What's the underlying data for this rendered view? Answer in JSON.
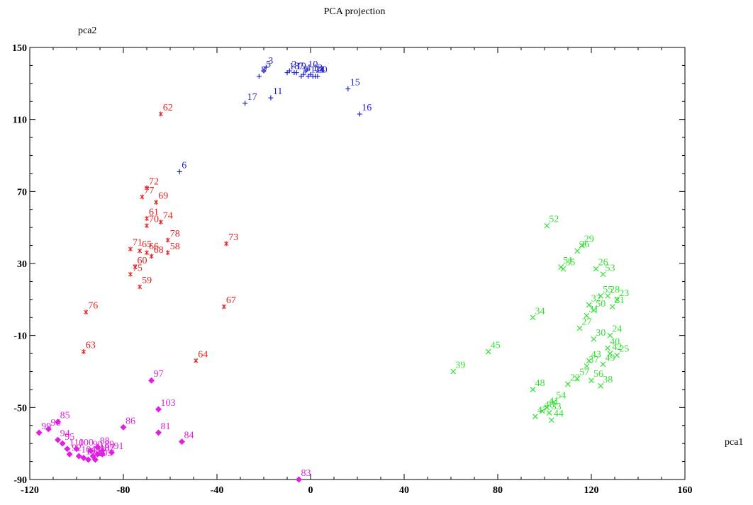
{
  "chart_data": {
    "type": "scatter",
    "title": "PCA projection",
    "xlabel": "pca1",
    "ylabel": "pca2",
    "xlim": [
      -120,
      160
    ],
    "ylim": [
      -90,
      150
    ],
    "xticks": [
      -120,
      -80,
      -40,
      0,
      40,
      80,
      120,
      160
    ],
    "yticks": [
      -90,
      -50,
      -10,
      30,
      70,
      110,
      150
    ],
    "grid": false,
    "legend": "none",
    "series": [
      {
        "marker": "plus",
        "color": "#2020c8",
        "points": [
          {
            "label": "3",
            "x": -19,
            "y": 139
          },
          {
            "label": "5",
            "x": -20,
            "y": 137
          },
          {
            "label": "8",
            "x": -22,
            "y": 134
          },
          {
            "label": "17",
            "x": -28,
            "y": 119
          },
          {
            "label": "11",
            "x": -17,
            "y": 122
          },
          {
            "label": "18",
            "x": -10,
            "y": 136
          },
          {
            "label": "2",
            "x": -9,
            "y": 137
          },
          {
            "label": "19",
            "x": -7,
            "y": 136
          },
          {
            "label": "7",
            "x": -6,
            "y": 136
          },
          {
            "label": "10",
            "x": -2,
            "y": 137
          },
          {
            "label": "9",
            "x": -4,
            "y": 134
          },
          {
            "label": "4",
            "x": -3,
            "y": 135
          },
          {
            "label": "12",
            "x": -1,
            "y": 134
          },
          {
            "label": "13",
            "x": 0,
            "y": 135
          },
          {
            "label": "14",
            "x": 1,
            "y": 134
          },
          {
            "label": "20",
            "x": 2,
            "y": 134
          },
          {
            "label": "1",
            "x": 3,
            "y": 134
          },
          {
            "label": "15",
            "x": 16,
            "y": 127
          },
          {
            "label": "16",
            "x": 21,
            "y": 113
          },
          {
            "label": "6",
            "x": -56,
            "y": 81
          }
        ]
      },
      {
        "marker": "asterisk",
        "color": "#e02020",
        "points": [
          {
            "label": "62",
            "x": -64,
            "y": 113
          },
          {
            "label": "72",
            "x": -70,
            "y": 72
          },
          {
            "label": "77",
            "x": -72,
            "y": 67
          },
          {
            "label": "69",
            "x": -66,
            "y": 64
          },
          {
            "label": "61",
            "x": -70,
            "y": 55
          },
          {
            "label": "70",
            "x": -70,
            "y": 51
          },
          {
            "label": "74",
            "x": -64,
            "y": 53
          },
          {
            "label": "78",
            "x": -61,
            "y": 43
          },
          {
            "label": "73",
            "x": -36,
            "y": 41
          },
          {
            "label": "71",
            "x": -77,
            "y": 38
          },
          {
            "label": "65",
            "x": -73,
            "y": 37
          },
          {
            "label": "66",
            "x": -70,
            "y": 36
          },
          {
            "label": "68",
            "x": -68,
            "y": 34
          },
          {
            "label": "58",
            "x": -61,
            "y": 36
          },
          {
            "label": "60",
            "x": -75,
            "y": 28
          },
          {
            "label": "75",
            "x": -77,
            "y": 24
          },
          {
            "label": "59",
            "x": -73,
            "y": 17
          },
          {
            "label": "76",
            "x": -96,
            "y": 3
          },
          {
            "label": "67",
            "x": -37,
            "y": 6
          },
          {
            "label": "63",
            "x": -97,
            "y": -19
          },
          {
            "label": "64",
            "x": -49,
            "y": -24
          }
        ]
      },
      {
        "marker": "cross",
        "color": "#30e030",
        "points": [
          {
            "label": "52",
            "x": 101,
            "y": 51
          },
          {
            "label": "29",
            "x": 116,
            "y": 40
          },
          {
            "label": "36",
            "x": 114,
            "y": 37
          },
          {
            "label": "35",
            "x": 108,
            "y": 27
          },
          {
            "label": "51",
            "x": 107,
            "y": 28
          },
          {
            "label": "26",
            "x": 122,
            "y": 27
          },
          {
            "label": "53",
            "x": 125,
            "y": 24
          },
          {
            "label": "55",
            "x": 124,
            "y": 12
          },
          {
            "label": "28",
            "x": 127,
            "y": 12
          },
          {
            "label": "23",
            "x": 131,
            "y": 10
          },
          {
            "label": "32",
            "x": 119,
            "y": 7
          },
          {
            "label": "50",
            "x": 121,
            "y": 4
          },
          {
            "label": "21",
            "x": 129,
            "y": 6
          },
          {
            "label": "34",
            "x": 95,
            "y": 0
          },
          {
            "label": "31",
            "x": 118,
            "y": 1
          },
          {
            "label": "27",
            "x": 115,
            "y": -6
          },
          {
            "label": "24",
            "x": 128,
            "y": -10
          },
          {
            "label": "30",
            "x": 121,
            "y": -12
          },
          {
            "label": "40",
            "x": 127,
            "y": -17
          },
          {
            "label": "42",
            "x": 128,
            "y": -20
          },
          {
            "label": "25",
            "x": 131,
            "y": -21
          },
          {
            "label": "43",
            "x": 119,
            "y": -24
          },
          {
            "label": "49",
            "x": 125,
            "y": -26
          },
          {
            "label": "37",
            "x": 118,
            "y": -27
          },
          {
            "label": "45",
            "x": 76,
            "y": -19
          },
          {
            "label": "39",
            "x": 61,
            "y": -30
          },
          {
            "label": "57",
            "x": 114,
            "y": -34
          },
          {
            "label": "56",
            "x": 120,
            "y": -35
          },
          {
            "label": "22",
            "x": 110,
            "y": -37
          },
          {
            "label": "38",
            "x": 124,
            "y": -38
          },
          {
            "label": "48",
            "x": 95,
            "y": -40
          },
          {
            "label": "54",
            "x": 104,
            "y": -47
          },
          {
            "label": "41",
            "x": 101,
            "y": -50
          },
          {
            "label": "46",
            "x": 99,
            "y": -52
          },
          {
            "label": "33",
            "x": 102,
            "y": -53
          },
          {
            "label": "47",
            "x": 96,
            "y": -55
          },
          {
            "label": "44",
            "x": 103,
            "y": -57
          }
        ]
      },
      {
        "marker": "diamond",
        "color": "#e020e0",
        "points": [
          {
            "label": "97",
            "x": -68,
            "y": -35
          },
          {
            "label": "103",
            "x": -65,
            "y": -51
          },
          {
            "label": "81",
            "x": -65,
            "y": -64
          },
          {
            "label": "84",
            "x": -55,
            "y": -69
          },
          {
            "label": "86",
            "x": -80,
            "y": -61
          },
          {
            "label": "85",
            "x": -108,
            "y": -58
          },
          {
            "label": "99",
            "x": -116,
            "y": -64
          },
          {
            "label": "96",
            "x": -112,
            "y": -62
          },
          {
            "label": "94",
            "x": -108,
            "y": -68
          },
          {
            "label": "95",
            "x": -106,
            "y": -70
          },
          {
            "label": "110",
            "x": -104,
            "y": -73
          },
          {
            "label": "100",
            "x": -100,
            "y": -73
          },
          {
            "label": "92",
            "x": -103,
            "y": -76
          },
          {
            "label": "104",
            "x": -99,
            "y": -77
          },
          {
            "label": "107",
            "x": -97,
            "y": -78
          },
          {
            "label": "106",
            "x": -95,
            "y": -79
          },
          {
            "label": "98",
            "x": -93,
            "y": -77
          },
          {
            "label": "105",
            "x": -92,
            "y": -79
          },
          {
            "label": "102",
            "x": -91,
            "y": -76
          },
          {
            "label": "87",
            "x": -89,
            "y": -76
          },
          {
            "label": "88",
            "x": -91,
            "y": -72
          },
          {
            "label": "89",
            "x": -89,
            "y": -74
          },
          {
            "label": "90",
            "x": -94,
            "y": -74
          },
          {
            "label": "91",
            "x": -85,
            "y": -75
          },
          {
            "label": "83",
            "x": -5,
            "y": -90
          }
        ]
      }
    ]
  }
}
